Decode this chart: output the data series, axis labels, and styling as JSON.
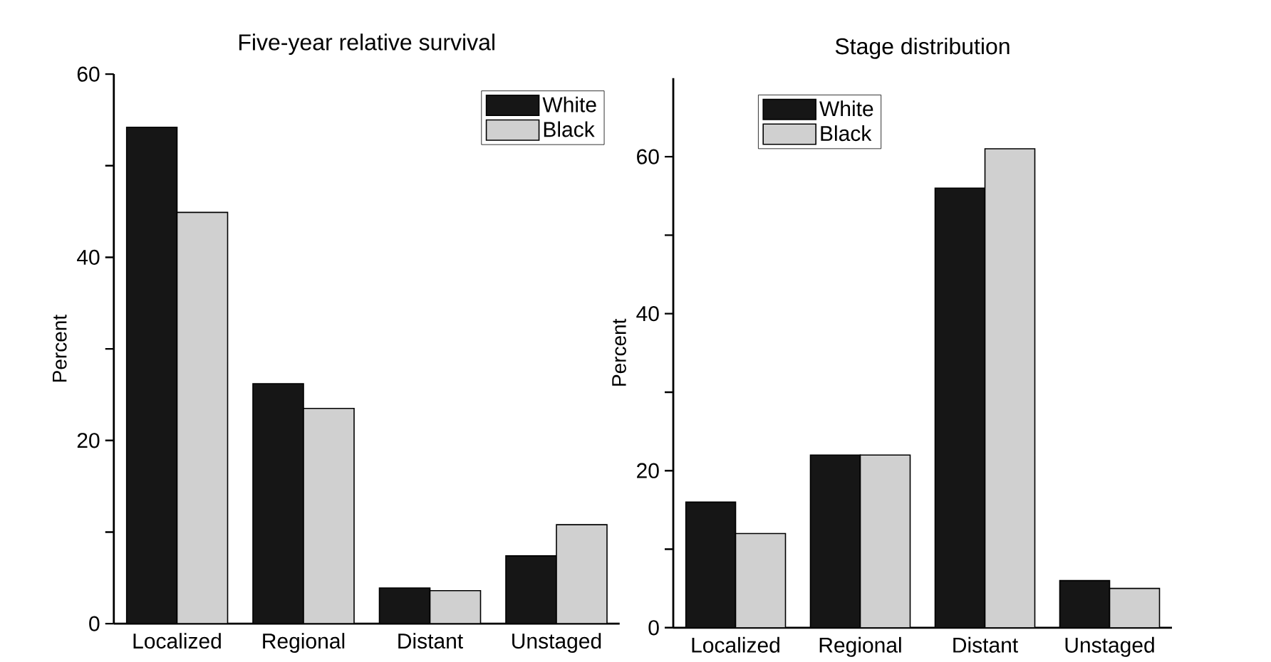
{
  "chart_data": [
    {
      "type": "bar",
      "title": "Five-year relative survival",
      "ylabel": "Percent",
      "categories": [
        "Localized",
        "Regional",
        "Distant",
        "Unstaged"
      ],
      "series": [
        {
          "name": "White",
          "color": "#161616",
          "values": [
            54.2,
            26.2,
            3.9,
            7.4
          ]
        },
        {
          "name": "Black",
          "color": "#d0d0d0",
          "values": [
            44.9,
            23.5,
            3.6,
            10.8
          ]
        }
      ],
      "ylim": [
        0,
        60
      ],
      "yticks": [
        0,
        {
          "value": 10,
          "label": null
        },
        20,
        {
          "value": 30,
          "label": null
        },
        40,
        {
          "value": 50,
          "label": null
        },
        60
      ],
      "legend": "top right",
      "grid": false
    },
    {
      "type": "bar",
      "title": "Stage distribution",
      "ylabel": "Percent",
      "categories": [
        "Localized",
        "Regional",
        "Distant",
        "Unstaged"
      ],
      "series": [
        {
          "name": "White",
          "color": "#161616",
          "values": [
            16,
            22,
            56,
            6
          ]
        },
        {
          "name": "Black",
          "color": "#d0d0d0",
          "values": [
            12,
            22,
            61,
            5
          ]
        }
      ],
      "ylim": [
        0,
        70
      ],
      "yticks": [
        0,
        {
          "value": 10,
          "label": null
        },
        20,
        {
          "value": 30,
          "label": null
        },
        40,
        {
          "value": 50,
          "label": null
        },
        60
      ],
      "legend": "top left",
      "grid": false
    }
  ]
}
